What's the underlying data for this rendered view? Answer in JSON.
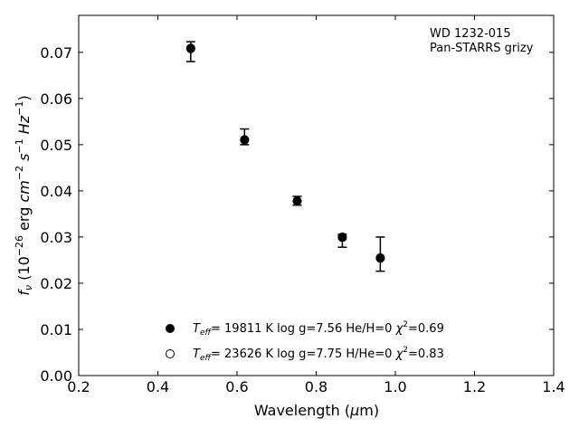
{
  "chart_data": {
    "type": "scatter",
    "annotation_lines": [
      "WD 1232-015",
      "Pan-STARRS grizy"
    ],
    "xlabel": {
      "pre": "Wavelength (",
      "sym": "μ",
      "post": "m)"
    },
    "ylabel": {
      "f": "f",
      "f_sub": "ν",
      "open": " (10",
      "exp1": "−26",
      "erg": " erg ",
      "cm": "cm",
      "exp2": "−2",
      "s": " s",
      "exp3": "−1",
      "hz": " Hz",
      "exp4": "−1",
      "close": ")"
    },
    "xlim": [
      0.2,
      1.4
    ],
    "ylim": [
      0.0,
      0.078
    ],
    "xticks": [
      0.2,
      0.4,
      0.6,
      0.8,
      1.0,
      1.2,
      1.4
    ],
    "yticks": [
      0.0,
      0.01,
      0.02,
      0.03,
      0.04,
      0.05,
      0.06,
      0.07
    ],
    "xtick_labels": [
      "0.2",
      "0.4",
      "0.6",
      "0.8",
      "1.0",
      "1.2",
      "1.4"
    ],
    "ytick_labels": [
      "0.00",
      "0.01",
      "0.02",
      "0.03",
      "0.04",
      "0.05",
      "0.06",
      "0.07"
    ],
    "grid": false,
    "legend_placement": "bottom-center",
    "observed": {
      "x": [
        0.483,
        0.619,
        0.752,
        0.866,
        0.962
      ],
      "y": [
        0.0708,
        0.0512,
        0.0379,
        0.0298,
        0.0255
      ],
      "yerr_low": [
        0.0028,
        0.0012,
        0.001,
        0.002,
        0.0029
      ],
      "yerr_high": [
        0.0015,
        0.0022,
        0.0009,
        0.0008,
        0.0045
      ]
    },
    "series": [
      {
        "marker": "filled",
        "label": {
          "t": "T",
          "t_sub": "eff",
          "val": "= 19811 K  log g=7.56  He/H=0  ",
          "chi": "χ",
          "chi_sup": "2",
          "chi_val": "=0.69"
        },
        "x": [
          0.483,
          0.619,
          0.752,
          0.866,
          0.962
        ],
        "y": [
          0.0708,
          0.051,
          0.0378,
          0.03,
          0.0255
        ]
      },
      {
        "marker": "open",
        "label": {
          "t": "T",
          "t_sub": "eff",
          "val": "= 23626 K  log g=7.75  H/He=0  ",
          "chi": "χ",
          "chi_sup": "2",
          "chi_val": "=0.83"
        },
        "x": [
          0.483,
          0.619,
          0.752,
          0.866,
          0.962
        ],
        "y": [
          0.0709,
          0.0511,
          0.0378,
          0.0299,
          0.0254
        ]
      }
    ],
    "colors": {
      "ink": "#000000",
      "background": "#ffffff"
    }
  }
}
